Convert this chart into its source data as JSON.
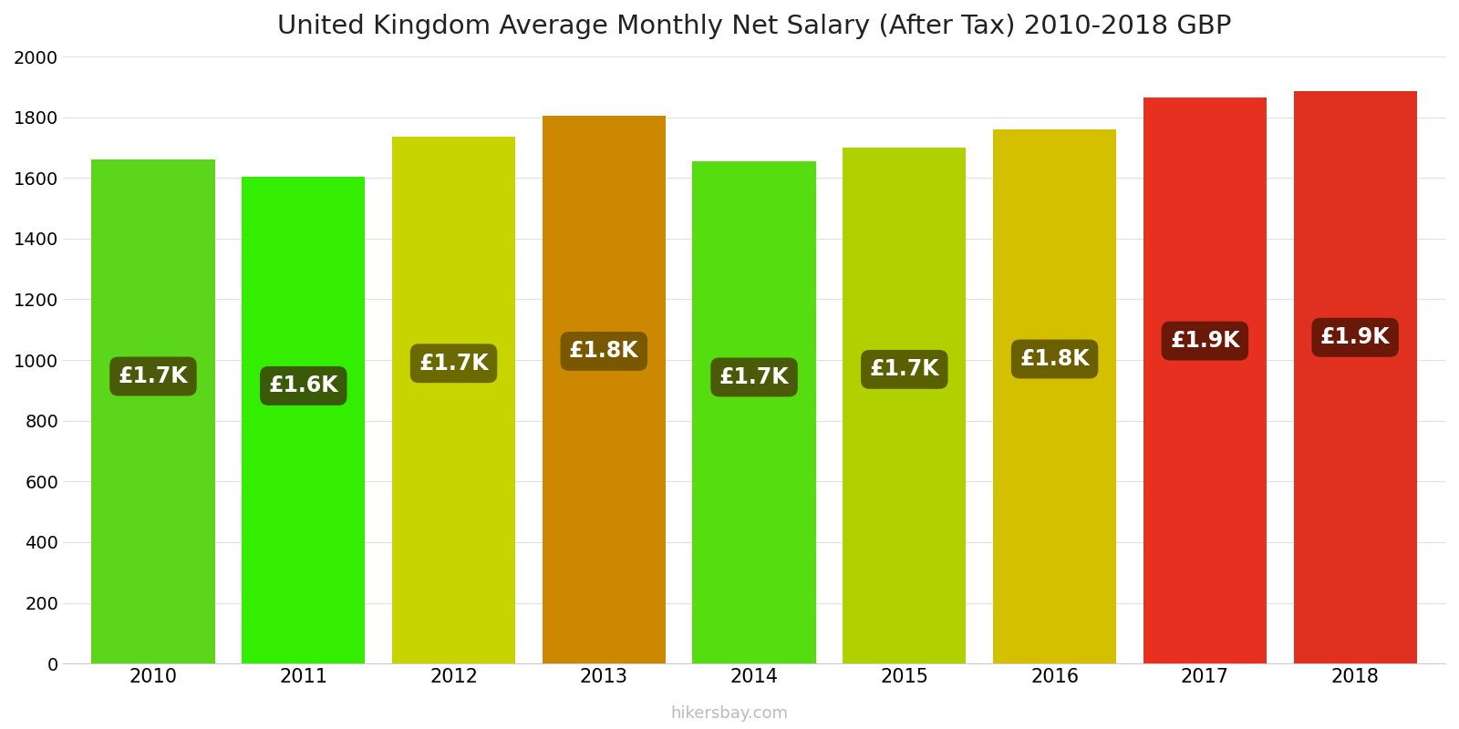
{
  "title": "United Kingdom Average Monthly Net Salary (After Tax) 2010-2018 GBP",
  "years": [
    2010,
    2011,
    2012,
    2013,
    2014,
    2015,
    2016,
    2017,
    2018
  ],
  "values": [
    1660,
    1605,
    1735,
    1805,
    1655,
    1700,
    1760,
    1865,
    1885
  ],
  "labels": [
    "£1.7K",
    "£1.6K",
    "£1.7K",
    "£1.8K",
    "£1.7K",
    "£1.7K",
    "£1.8K",
    "£1.9K",
    "£1.9K"
  ],
  "bar_colors": [
    "#5cd61a",
    "#33ee00",
    "#c8d400",
    "#cc8800",
    "#55dd10",
    "#b0d000",
    "#d4c000",
    "#e83020",
    "#e03020"
  ],
  "label_bg_colors": [
    "#4a5a08",
    "#3a5a08",
    "#6a6a00",
    "#7a5800",
    "#4a5a08",
    "#5a6000",
    "#6a6000",
    "#6a1808",
    "#6a1808"
  ],
  "ylim": [
    0,
    2000
  ],
  "yticks": [
    0,
    200,
    400,
    600,
    800,
    1000,
    1200,
    1400,
    1600,
    1800,
    2000
  ],
  "watermark": "hikersbay.com",
  "background_color": "#ffffff",
  "label_fontsize": 17,
  "title_fontsize": 21,
  "bar_width": 0.82
}
